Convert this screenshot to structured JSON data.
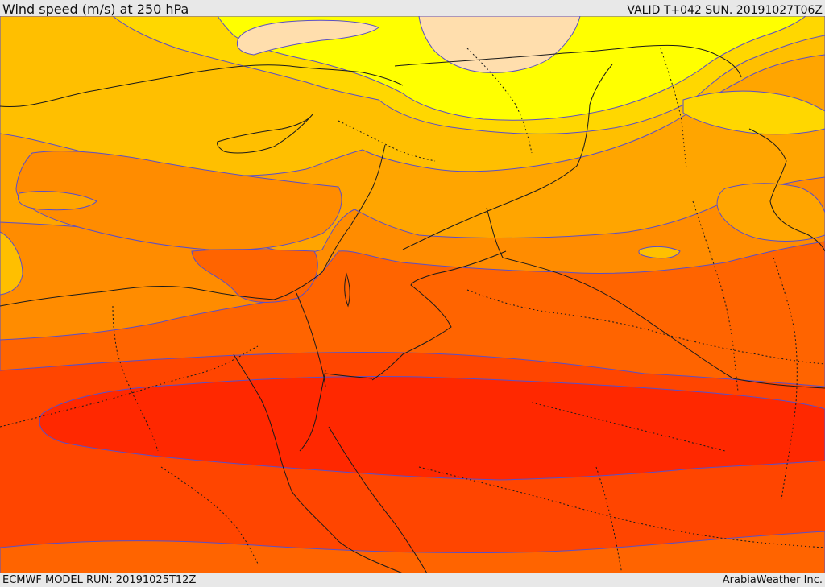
{
  "header": {
    "title": "Wind speed (m/s) at 250 hPa",
    "valid_time": "VALID T+042 SUN. 20191027T06Z"
  },
  "footer": {
    "model_run": "ECMWF MODEL RUN: 20191025T12Z",
    "credit": "ArabiaWeather Inc."
  },
  "map": {
    "variable": "wind speed",
    "units": "m/s",
    "level_hpa": 250,
    "fill_colors": [
      "#ffdead",
      "#ffff00",
      "#ffd700",
      "#ffbf00",
      "#ffa500",
      "#ff8c00",
      "#ff6400",
      "#ff4500",
      "#ff2800"
    ]
  }
}
